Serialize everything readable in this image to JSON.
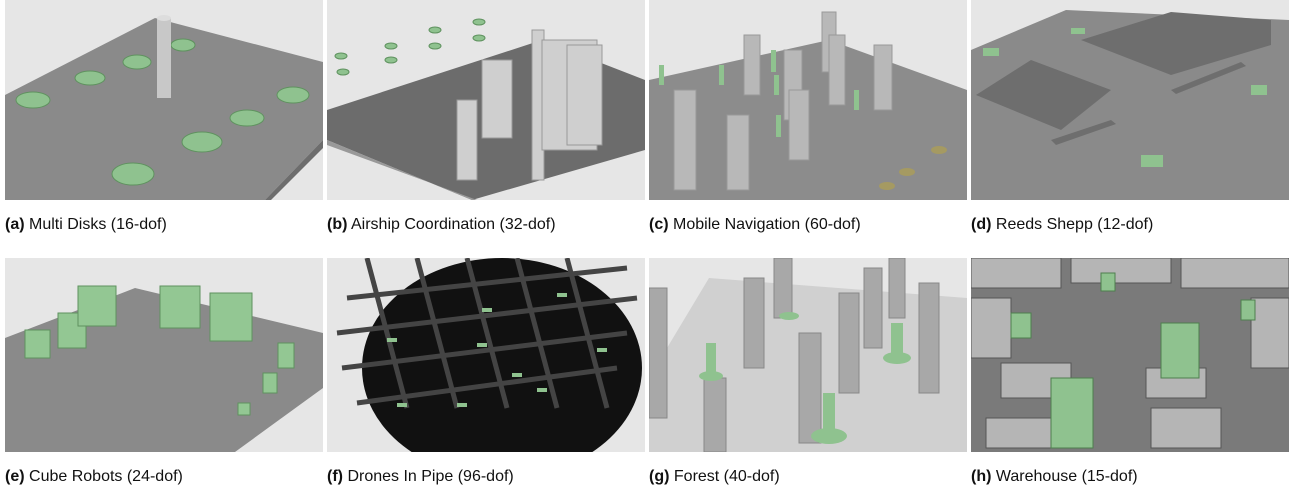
{
  "panels": [
    {
      "label": "(a)",
      "caption": "Multi Disks (16-dof)"
    },
    {
      "label": "(b)",
      "caption": "Airship Coordination (32-dof)"
    },
    {
      "label": "(c)",
      "caption": "Mobile Navigation (60-dof)"
    },
    {
      "label": "(d)",
      "caption": "Reeds Shepp (12-dof)"
    },
    {
      "label": "(e)",
      "caption": "Cube Robots (24-dof)"
    },
    {
      "label": "(f)",
      "caption": "Drones In Pipe (96-dof)"
    },
    {
      "label": "(g)",
      "caption": "Forest (40-dof)"
    },
    {
      "label": "(h)",
      "caption": "Warehouse (15-dof)"
    }
  ]
}
